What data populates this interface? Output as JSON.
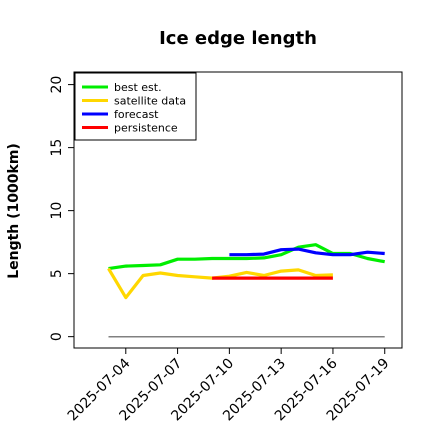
{
  "chart_data": {
    "type": "line",
    "title": "Ice edge length",
    "xlabel": "",
    "ylabel": "Length (1000km)",
    "ylim": [
      -0.9,
      21.0
    ],
    "xlim": [
      "2025-07-01",
      "2025-07-20"
    ],
    "yticks": [
      0,
      5,
      10,
      15,
      20
    ],
    "xticks": [
      "2025-07-04",
      "2025-07-07",
      "2025-07-10",
      "2025-07-13",
      "2025-07-16",
      "2025-07-19"
    ],
    "highlight_tick": {
      "label": "2025-07-10",
      "color": "#228B22"
    },
    "grid": false,
    "legend_position": "top-left",
    "series": [
      {
        "name": "best est.",
        "color": "#00ee00",
        "x": [
          "2025-07-03",
          "2025-07-04",
          "2025-07-05",
          "2025-07-06",
          "2025-07-07",
          "2025-07-08",
          "2025-07-09",
          "2025-07-10",
          "2025-07-11",
          "2025-07-12",
          "2025-07-13",
          "2025-07-14",
          "2025-07-15",
          "2025-07-16",
          "2025-07-17",
          "2025-07-18",
          "2025-07-19"
        ],
        "y": [
          5.4,
          5.6,
          5.65,
          5.7,
          6.15,
          6.15,
          6.2,
          6.2,
          6.2,
          6.25,
          6.5,
          7.1,
          7.3,
          6.6,
          6.6,
          6.2,
          5.95
        ]
      },
      {
        "name": "satellite data",
        "color": "#ffd700",
        "x": [
          "2025-07-03",
          "2025-07-04",
          "2025-07-05",
          "2025-07-06",
          "2025-07-07",
          "2025-07-08",
          "2025-07-09",
          "2025-07-10",
          "2025-07-11",
          "2025-07-12",
          "2025-07-13",
          "2025-07-14",
          "2025-07-15",
          "2025-07-16"
        ],
        "y": [
          5.4,
          3.1,
          4.85,
          5.05,
          4.85,
          4.75,
          4.65,
          4.8,
          5.1,
          4.85,
          5.2,
          5.3,
          4.85,
          4.9
        ]
      },
      {
        "name": "forecast",
        "color": "#0000ff",
        "x": [
          "2025-07-10",
          "2025-07-11",
          "2025-07-12",
          "2025-07-13",
          "2025-07-14",
          "2025-07-15",
          "2025-07-16",
          "2025-07-17",
          "2025-07-18",
          "2025-07-19"
        ],
        "y": [
          6.5,
          6.5,
          6.55,
          6.9,
          6.95,
          6.65,
          6.5,
          6.5,
          6.7,
          6.6
        ]
      },
      {
        "name": "persistence",
        "color": "#ff0000",
        "x": [
          "2025-07-09",
          "2025-07-16"
        ],
        "y": [
          4.65,
          4.65
        ]
      },
      {
        "name": "",
        "color": "#808080",
        "x": [
          "2025-07-03",
          "2025-07-19"
        ],
        "y": [
          0,
          0
        ]
      }
    ]
  }
}
